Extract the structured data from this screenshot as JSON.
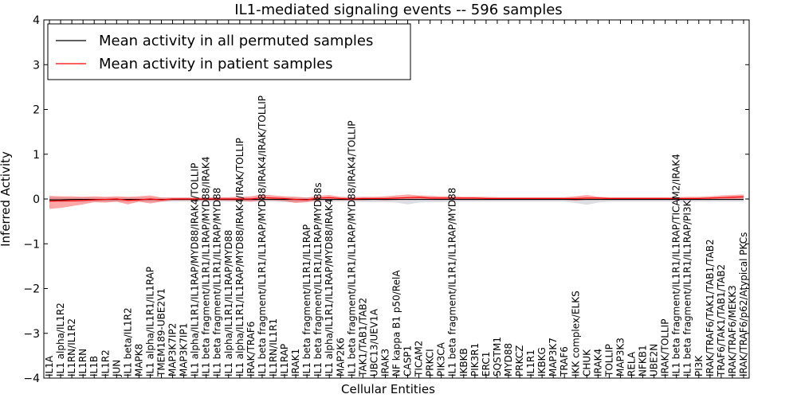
{
  "chart_data": {
    "type": "line",
    "title": "IL1-mediated signaling events -- 596 samples",
    "xlabel": "Cellular Entities",
    "ylabel": "Inferred Activity",
    "ylim": [
      -4,
      4
    ],
    "yticks": [
      -4,
      -3,
      -2,
      -1,
      0,
      1,
      2,
      3,
      4
    ],
    "ytick_labels": [
      "−4",
      "−3",
      "−2",
      "−1",
      "0",
      "1",
      "2",
      "3",
      "4"
    ],
    "legend_position": "top-left",
    "categories": [
      "IL1A",
      "IL1 alpha/IL1R2",
      "IL1RN/IL1R2",
      "IL1RN",
      "IL1B",
      "IL1R2",
      "JUN",
      "IL1 beta/IL1R2",
      "MAPK8",
      "IL1 alpha/IL1R1/IL1RAP",
      "TMEM189-UBE2V1",
      "MAP3K7IP2",
      "MAP3K7IP1",
      "IL1 alpha/IL1R1/IL1RAP/MYD88/IRAK4/TOLLIP",
      "IL1 beta fragment/IL1R1/IL1RAP/MYD88/IRAK4",
      "IL1 beta fragment/IL1R1/IL1RAP/MYD88",
      "IL1 alpha/IL1R1/IL1RAP/MYD88",
      "IL1 alpha/IL1R1/IL1RAP/MYD88/IRAK4/IRAK/TOLLIP",
      "IRAK/TRAF6",
      "IL1 beta fragment/IL1R1/IL1RAP/MYD88/IRAK4/IRAK/TOLLIP",
      "IL1RN/IL1R1",
      "IL1RAP",
      "IRAK1",
      "IL1 beta fragment/IL1R1/IL1RAP",
      "IL1 beta fragment/IL1R1/IL1RAP/MYD88s",
      "IL1 alpha/IL1R1/IL1RAP/MYD88/IRAK4",
      "MAP2K6",
      "IL1 beta fragment/IL1R1/IL1RAP/MYD88/IRAK4/TOLLIP",
      "TAK1/TAB1/TAB2",
      "UBC13/UEV1A",
      "IRAK3",
      "NF kappa B1 p50/RelA",
      "CASP1",
      "TICAM2",
      "PRKCI",
      "PIK3CA",
      "IL1 beta fragment/IL1R1/IL1RAP/MYD88",
      "IKBKB",
      "PIK3R1",
      "ERC1",
      "SQSTM1",
      "MYD88",
      "PRKCZ",
      "IL1R1",
      "IKBKG",
      "MAP3K7",
      "TRAF6",
      "IKK complex/ELKS",
      "CHUK",
      "IRAK4",
      "TOLLIP",
      "MAP3K3",
      "RELA",
      "NFKB1",
      "UBE2N",
      "IRAK/TOLLIP",
      "IL1 beta fragment/IL1R1/IL1RAP/TICAM2/IRAK4",
      "IL1 beta fragment/IL1R1/IL1RAP/PI3K",
      "PI3K",
      "IRAK/TRAF6/TAK1/TAB1/TAB2",
      "TRAF6/TAK1/TAB1/TAB2",
      "IRAK/TRAF6/MEKK3",
      "IRAK/TRAF6/p62/Atypical PKCs"
    ],
    "series": [
      {
        "name": "Mean activity in all permuted samples",
        "color": "#000000",
        "values": [
          -0.02,
          -0.02,
          -0.01,
          -0.01,
          -0.01,
          -0.01,
          -0.01,
          -0.01,
          -0.01,
          -0.01,
          -0.01,
          -0.01,
          -0.01,
          -0.01,
          -0.01,
          -0.01,
          -0.01,
          -0.01,
          -0.01,
          -0.01,
          -0.01,
          -0.01,
          -0.01,
          -0.01,
          -0.01,
          -0.01,
          -0.01,
          -0.01,
          -0.01,
          -0.01,
          -0.01,
          -0.01,
          -0.01,
          -0.01,
          -0.01,
          -0.01,
          -0.01,
          -0.01,
          -0.01,
          -0.01,
          -0.01,
          -0.01,
          -0.01,
          -0.01,
          -0.01,
          -0.01,
          -0.01,
          -0.01,
          -0.01,
          -0.01,
          -0.01,
          -0.01,
          -0.01,
          -0.01,
          -0.01,
          -0.01,
          -0.01,
          -0.01,
          -0.01,
          -0.01,
          -0.01,
          -0.01,
          -0.01
        ],
        "band_lower": [
          -0.06,
          -0.07,
          -0.06,
          -0.07,
          -0.06,
          -0.06,
          -0.06,
          -0.06,
          -0.06,
          -0.06,
          -0.06,
          -0.06,
          -0.06,
          -0.06,
          -0.06,
          -0.06,
          -0.06,
          -0.06,
          -0.06,
          -0.06,
          -0.06,
          -0.07,
          -0.07,
          -0.06,
          -0.06,
          -0.06,
          -0.06,
          -0.06,
          -0.07,
          -0.07,
          -0.07,
          -0.08,
          -0.12,
          -0.08,
          -0.07,
          -0.07,
          -0.06,
          -0.06,
          -0.06,
          -0.06,
          -0.06,
          -0.06,
          -0.06,
          -0.06,
          -0.06,
          -0.06,
          -0.06,
          -0.09,
          -0.13,
          -0.08,
          -0.06,
          -0.06,
          -0.06,
          -0.06,
          -0.06,
          -0.06,
          -0.06,
          -0.06,
          -0.06,
          -0.06,
          -0.06,
          -0.06,
          -0.06
        ],
        "band_upper": [
          0.04,
          0.04,
          0.03,
          0.04,
          0.03,
          0.03,
          0.03,
          0.03,
          0.03,
          0.03,
          0.03,
          0.03,
          0.03,
          0.03,
          0.03,
          0.03,
          0.03,
          0.03,
          0.03,
          0.03,
          0.03,
          0.03,
          0.03,
          0.03,
          0.03,
          0.03,
          0.03,
          0.03,
          0.03,
          0.03,
          0.03,
          0.03,
          0.03,
          0.03,
          0.03,
          0.03,
          0.03,
          0.03,
          0.03,
          0.03,
          0.03,
          0.03,
          0.03,
          0.03,
          0.03,
          0.03,
          0.03,
          0.03,
          0.03,
          0.03,
          0.03,
          0.03,
          0.03,
          0.03,
          0.03,
          0.03,
          0.03,
          0.03,
          0.03,
          0.03,
          0.03,
          0.03,
          0.03
        ]
      },
      {
        "name": "Mean activity in patient samples",
        "color": "#ff0000",
        "values": [
          -0.05,
          -0.04,
          -0.04,
          -0.03,
          -0.02,
          -0.01,
          0.0,
          -0.03,
          -0.02,
          0.0,
          -0.02,
          0.0,
          0.0,
          0.0,
          0.0,
          0.0,
          0.0,
          0.0,
          0.0,
          0.03,
          0.02,
          0.01,
          -0.01,
          -0.02,
          0.02,
          0.03,
          0.01,
          0.0,
          0.01,
          0.01,
          0.01,
          0.02,
          0.03,
          0.04,
          0.02,
          0.02,
          0.02,
          0.02,
          0.02,
          0.01,
          0.01,
          0.01,
          0.01,
          0.01,
          0.01,
          0.01,
          0.01,
          0.01,
          0.02,
          0.02,
          0.01,
          0.01,
          0.01,
          0.01,
          0.01,
          0.01,
          0.01,
          0.01,
          0.01,
          0.02,
          0.03,
          0.04,
          0.05
        ],
        "band_lower": [
          -0.22,
          -0.2,
          -0.16,
          -0.12,
          -0.07,
          -0.08,
          -0.06,
          -0.12,
          -0.06,
          -0.1,
          -0.06,
          -0.03,
          -0.03,
          -0.03,
          -0.03,
          -0.03,
          -0.04,
          -0.04,
          -0.06,
          -0.03,
          -0.03,
          -0.05,
          -0.09,
          -0.07,
          -0.03,
          -0.02,
          -0.03,
          -0.03,
          -0.03,
          -0.02,
          -0.03,
          -0.02,
          -0.01,
          0.0,
          -0.02,
          -0.02,
          -0.02,
          -0.02,
          -0.02,
          -0.02,
          -0.02,
          -0.02,
          -0.02,
          -0.02,
          -0.02,
          -0.02,
          -0.02,
          -0.04,
          -0.02,
          -0.02,
          -0.02,
          -0.02,
          -0.02,
          -0.02,
          -0.02,
          -0.02,
          -0.02,
          -0.02,
          -0.02,
          -0.02,
          -0.01,
          -0.01,
          0.0
        ],
        "band_upper": [
          0.07,
          0.06,
          0.06,
          0.05,
          0.06,
          0.05,
          0.06,
          0.05,
          0.06,
          0.08,
          0.03,
          0.03,
          0.03,
          0.03,
          0.03,
          0.04,
          0.04,
          0.05,
          0.06,
          0.1,
          0.08,
          0.06,
          0.05,
          0.03,
          0.07,
          0.09,
          0.05,
          0.04,
          0.05,
          0.05,
          0.06,
          0.08,
          0.1,
          0.08,
          0.07,
          0.06,
          0.06,
          0.05,
          0.05,
          0.05,
          0.04,
          0.04,
          0.04,
          0.04,
          0.04,
          0.04,
          0.04,
          0.06,
          0.09,
          0.05,
          0.04,
          0.04,
          0.04,
          0.04,
          0.04,
          0.04,
          0.04,
          0.05,
          0.05,
          0.06,
          0.08,
          0.09,
          0.1
        ]
      }
    ]
  }
}
